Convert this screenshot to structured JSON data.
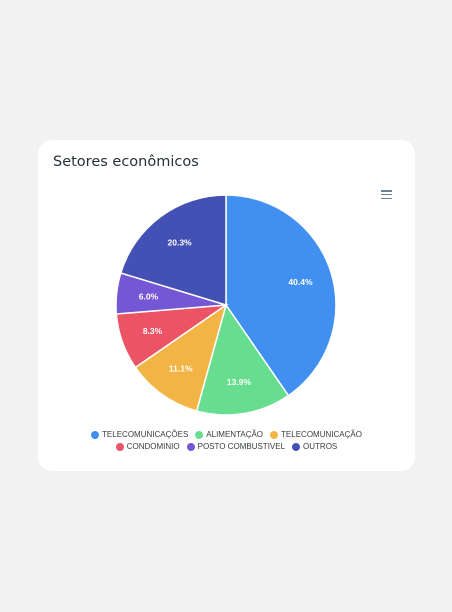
{
  "card": {
    "title": "Setores econômicos"
  },
  "toolbar": {
    "menu_icon": "hamburger-menu-icon"
  },
  "chart_data": {
    "type": "pie",
    "title": "Setores econômicos",
    "slices": [
      {
        "label": "TELECOMUNICAÇÕES",
        "value": 40.4,
        "display": "40.4%",
        "color": "#4190f1"
      },
      {
        "label": "ALIMENTAÇÃO",
        "value": 13.9,
        "display": "13.9%",
        "color": "#66dd8f"
      },
      {
        "label": "TELECOMUNICAÇÃO",
        "value": 11.1,
        "display": "11.1%",
        "color": "#f3b446"
      },
      {
        "label": "CONDOMINIO",
        "value": 8.3,
        "display": "8.3%",
        "color": "#ec5364"
      },
      {
        "label": "POSTO COMBUSTIVEL",
        "value": 6.0,
        "display": "6.0%",
        "color": "#7457d5"
      },
      {
        "label": "OUTROS",
        "value": 20.3,
        "display": "20.3%",
        "color": "#4351b4"
      }
    ],
    "legend_position": "bottom"
  }
}
